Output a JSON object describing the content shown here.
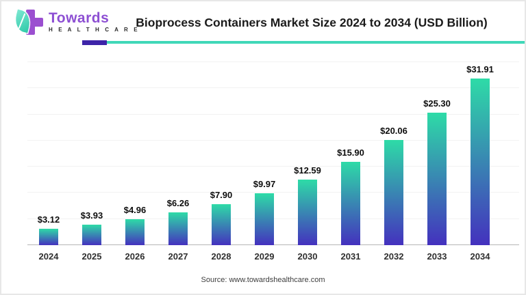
{
  "logo": {
    "name": "Towards",
    "subname": "H E A L T H C A R E"
  },
  "header": {
    "title": "Bioprocess Containers Market Size 2024 to 2034 (USD Billion)"
  },
  "chart_data": {
    "type": "bar",
    "title": "Bioprocess Containers Market Size 2024 to 2034 (USD Billion)",
    "categories": [
      "2024",
      "2025",
      "2026",
      "2027",
      "2028",
      "2029",
      "2030",
      "2031",
      "2032",
      "2033",
      "2034"
    ],
    "values": [
      3.12,
      3.93,
      4.96,
      6.26,
      7.9,
      9.97,
      12.59,
      15.9,
      20.06,
      25.3,
      31.91
    ],
    "value_labels": [
      "$3.12",
      "$3.93",
      "$4.96",
      "$6.26",
      "$7.90",
      "$9.97",
      "$12.59",
      "$15.90",
      "$20.06",
      "$25.30",
      "$31.91"
    ],
    "xlabel": "",
    "ylabel": "",
    "ylim": [
      0,
      35
    ],
    "gridline_step": 5,
    "grid": "horizontal-faint",
    "legend": "none",
    "unit": "USD Billion"
  },
  "colors": {
    "bar_gradient_top": "#2edba7",
    "bar_gradient_bottom": "#4431be",
    "divider_purple": "#3d24a8",
    "divider_teal": "#40d8b8",
    "logo_purple": "#9b4fd0",
    "logo_text_purple": "#8d4fd3"
  },
  "footer": {
    "source": "Source: www.towardshealthcare.com"
  }
}
